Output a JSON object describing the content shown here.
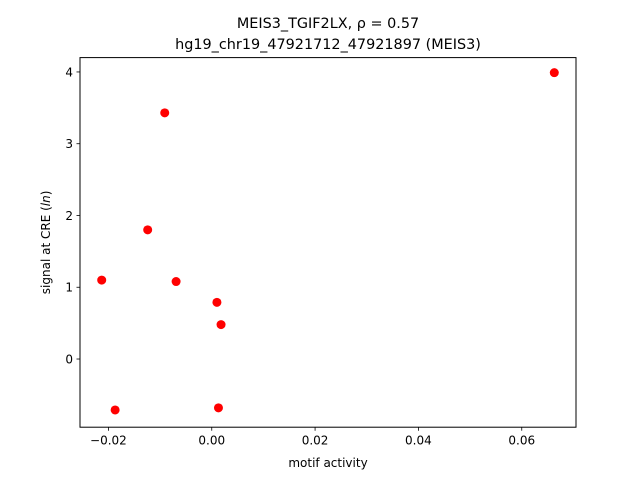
{
  "chart_data": {
    "type": "scatter",
    "title_line1": "MEIS3_TGIF2LX, ρ = 0.57",
    "title_line2": "hg19_chr19_47921712_47921897 (MEIS3)",
    "xlabel": "motif activity",
    "ylabel": "signal at CRE (ln)",
    "xlim": [
      -0.0255,
      0.0705
    ],
    "ylim": [
      -0.95,
      4.2
    ],
    "x_ticks": [
      -0.02,
      0.0,
      0.02,
      0.04,
      0.06
    ],
    "x_tick_labels": [
      "−0.02",
      "0.00",
      "0.02",
      "0.04",
      "0.06"
    ],
    "y_ticks": [
      0,
      1,
      2,
      3,
      4
    ],
    "y_tick_labels": [
      "0",
      "1",
      "2",
      "3",
      "4"
    ],
    "grid": false,
    "marker_color": "#ff0000",
    "points": [
      {
        "x": 0.0663,
        "y": 3.99
      },
      {
        "x": -0.0091,
        "y": 3.43
      },
      {
        "x": -0.0124,
        "y": 1.8
      },
      {
        "x": -0.0213,
        "y": 1.1
      },
      {
        "x": -0.0069,
        "y": 1.08
      },
      {
        "x": 0.001,
        "y": 0.79
      },
      {
        "x": 0.0018,
        "y": 0.48
      },
      {
        "x": 0.0013,
        "y": -0.68
      },
      {
        "x": -0.0187,
        "y": -0.71
      }
    ]
  }
}
